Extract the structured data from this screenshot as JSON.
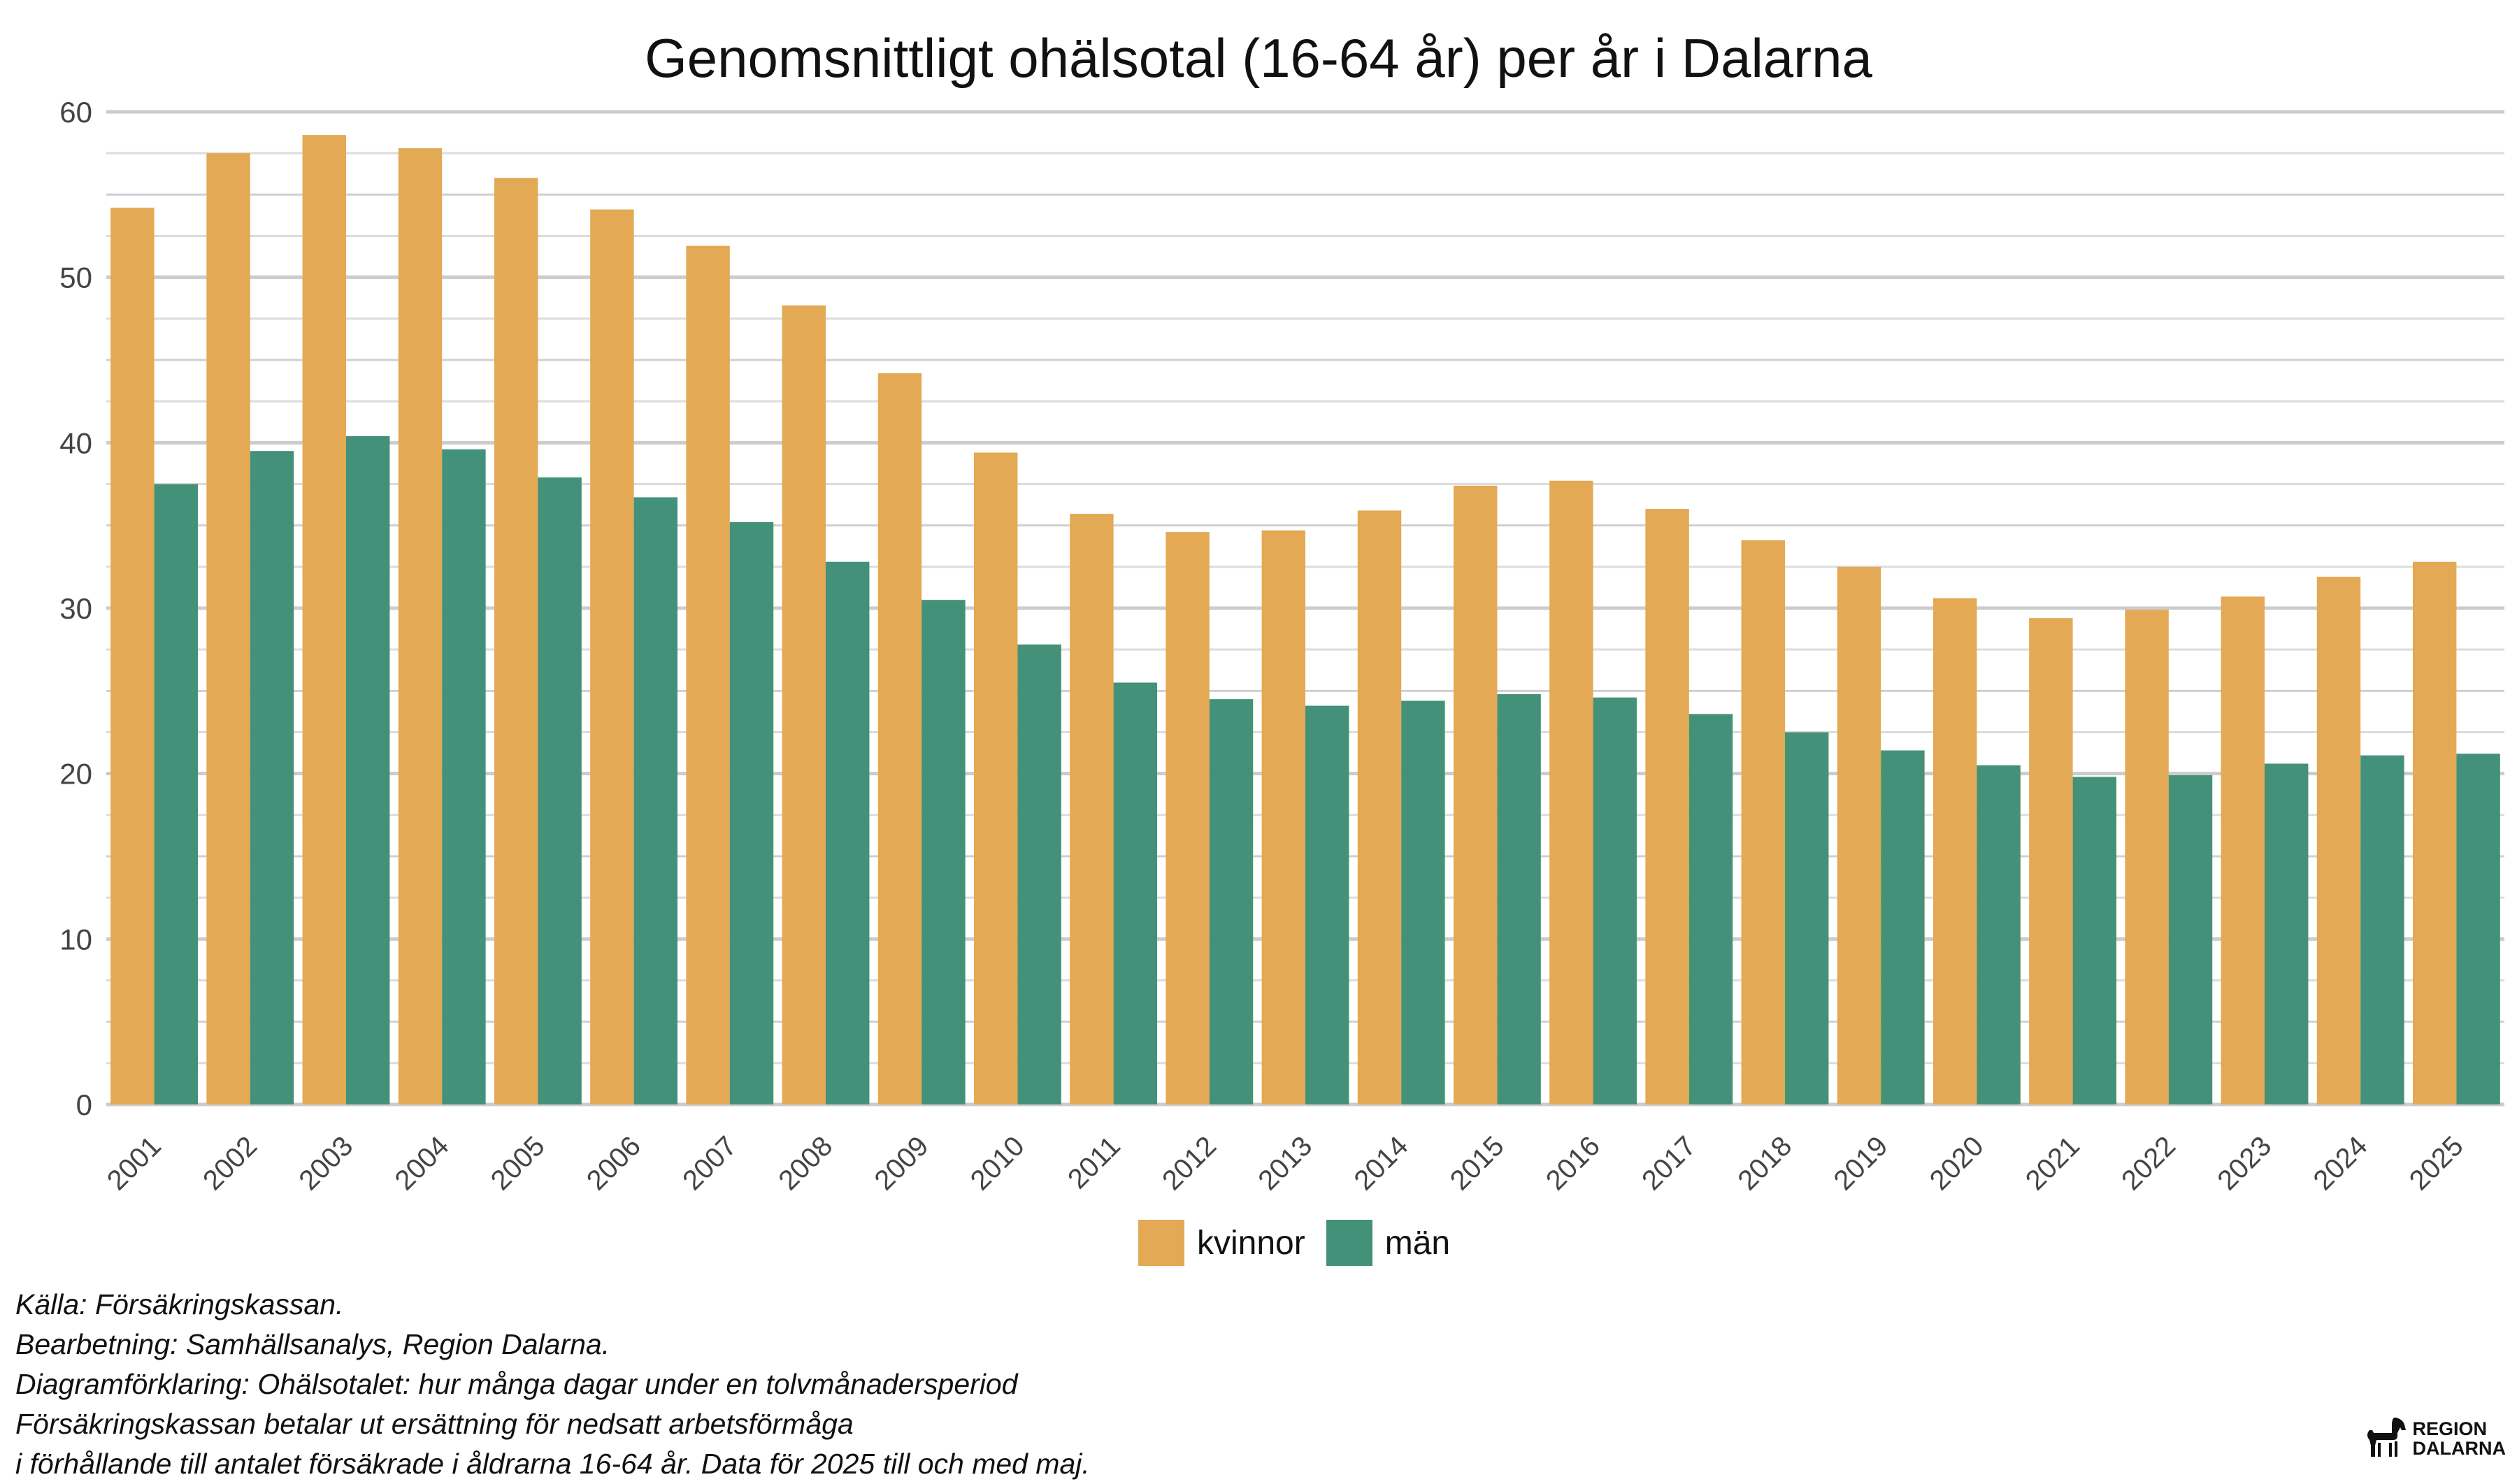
{
  "chart_data": {
    "type": "bar",
    "title": "Genomsnittligt ohälsotal (16-64 år) per år i Dalarna",
    "xlabel": "",
    "ylabel": "",
    "ylim": [
      0,
      60
    ],
    "yticks": [
      0,
      10,
      20,
      30,
      40,
      50,
      60
    ],
    "grid": true,
    "legend_position": "bottom",
    "categories": [
      "2001",
      "2002",
      "2003",
      "2004",
      "2005",
      "2006",
      "2007",
      "2008",
      "2009",
      "2010",
      "2011",
      "2012",
      "2013",
      "2014",
      "2015",
      "2016",
      "2017",
      "2018",
      "2019",
      "2020",
      "2021",
      "2022",
      "2023",
      "2024",
      "2025"
    ],
    "series": [
      {
        "name": "kvinnor",
        "color": "#E3A955",
        "values": [
          54.2,
          57.5,
          58.6,
          57.8,
          56.0,
          54.1,
          51.9,
          48.3,
          44.2,
          39.4,
          35.7,
          34.6,
          34.7,
          35.9,
          37.4,
          37.7,
          36.0,
          34.1,
          32.5,
          30.6,
          29.4,
          29.9,
          30.7,
          31.9,
          32.8
        ]
      },
      {
        "name": "män",
        "color": "#44917A",
        "values": [
          37.5,
          39.5,
          40.4,
          39.6,
          37.9,
          36.7,
          35.2,
          32.8,
          30.5,
          27.8,
          25.5,
          24.5,
          24.1,
          24.4,
          24.8,
          24.6,
          23.6,
          22.5,
          21.4,
          20.5,
          19.8,
          19.9,
          20.6,
          21.1,
          21.2
        ]
      }
    ]
  },
  "caption": {
    "lines": [
      "Källa: Försäkringskassan.",
      "Bearbetning: Samhällsanalys, Region Dalarna.",
      "Diagramförklaring: Ohälsotalet: hur många dagar under en tolvmånadersperiod",
      "Försäkringskassan betalar ut ersättning för nedsatt arbetsförmåga",
      "i förhållande till antalet försäkrade i åldrarna 16-64 år. Data för 2025 till och med maj."
    ]
  },
  "logo": {
    "line1": "REGION",
    "line2": "DALARNA",
    "icon": "dala-horse-icon"
  }
}
